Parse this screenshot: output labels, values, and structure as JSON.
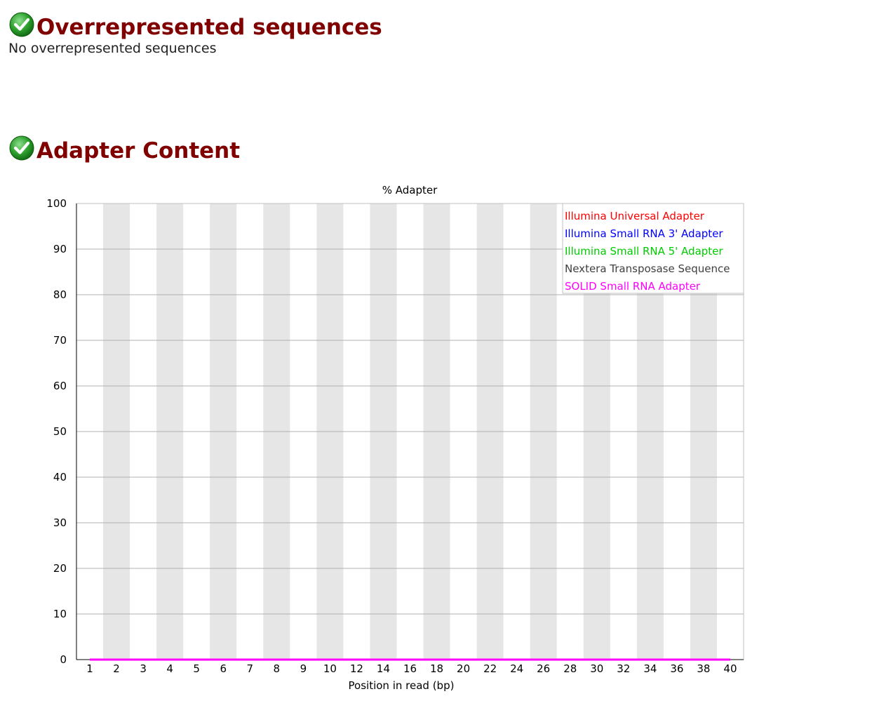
{
  "sections": [
    {
      "title": "Overrepresented sequences",
      "status_icon": "pass-check-icon",
      "text": "No overrepresented sequences"
    },
    {
      "title": "Adapter Content",
      "status_icon": "pass-check-icon"
    }
  ],
  "colors": {
    "title": "#800000",
    "band": "#e6e6e6",
    "grid": "#b0b0b0",
    "pass_green": "#2ea02e"
  },
  "chart_data": {
    "type": "line",
    "title": "% Adapter",
    "xlabel": "Position in read (bp)",
    "ylabel": "",
    "ylim": [
      0,
      100
    ],
    "y_ticks": [
      0,
      10,
      20,
      30,
      40,
      50,
      60,
      70,
      80,
      90,
      100
    ],
    "x_tick_labels": [
      "1",
      "2",
      "3",
      "4",
      "5",
      "6",
      "7",
      "8",
      "9",
      "10",
      "12",
      "14",
      "16",
      "18",
      "20",
      "22",
      "24",
      "26",
      "28",
      "30",
      "32",
      "34",
      "36",
      "38",
      "40"
    ],
    "legend_position": "top-right",
    "grid": true,
    "series": [
      {
        "name": "Illumina Universal Adapter",
        "color": "#ff0000",
        "values": [
          0,
          0,
          0,
          0,
          0,
          0,
          0,
          0,
          0,
          0,
          0,
          0,
          0,
          0,
          0,
          0,
          0,
          0,
          0,
          0,
          0,
          0,
          0,
          0,
          0
        ]
      },
      {
        "name": "Illumina Small RNA 3' Adapter",
        "color": "#0000ff",
        "values": [
          0,
          0,
          0,
          0,
          0,
          0,
          0,
          0,
          0,
          0,
          0,
          0,
          0,
          0,
          0,
          0,
          0,
          0,
          0,
          0,
          0,
          0,
          0,
          0,
          0
        ]
      },
      {
        "name": "Illumina Small RNA 5' Adapter",
        "color": "#00cc00",
        "values": [
          0,
          0,
          0,
          0,
          0,
          0,
          0,
          0,
          0,
          0,
          0,
          0,
          0,
          0,
          0,
          0,
          0,
          0,
          0,
          0,
          0,
          0,
          0,
          0,
          0
        ]
      },
      {
        "name": "Nextera Transposase Sequence",
        "color": "#404040",
        "values": [
          0,
          0,
          0,
          0,
          0,
          0,
          0,
          0,
          0,
          0,
          0,
          0,
          0,
          0,
          0,
          0,
          0,
          0,
          0,
          0,
          0,
          0,
          0,
          0,
          0
        ]
      },
      {
        "name": "SOLID Small RNA Adapter",
        "color": "#ff00ff",
        "values": [
          0,
          0,
          0,
          0,
          0,
          0,
          0,
          0,
          0,
          0,
          0,
          0,
          0,
          0,
          0,
          0,
          0,
          0,
          0,
          0,
          0,
          0,
          0,
          0,
          0
        ]
      }
    ]
  }
}
